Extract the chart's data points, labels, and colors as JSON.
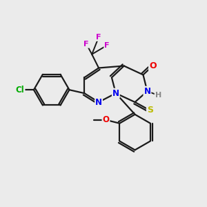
{
  "bg_color": "#ebebeb",
  "atom_colors": {
    "N": "#0000ee",
    "O": "#ee0000",
    "S": "#bbbb00",
    "F": "#cc00cc",
    "Cl": "#00aa00",
    "C": "#1a1a1a",
    "H": "#888888"
  },
  "figsize": [
    3.0,
    3.0
  ],
  "dpi": 100
}
